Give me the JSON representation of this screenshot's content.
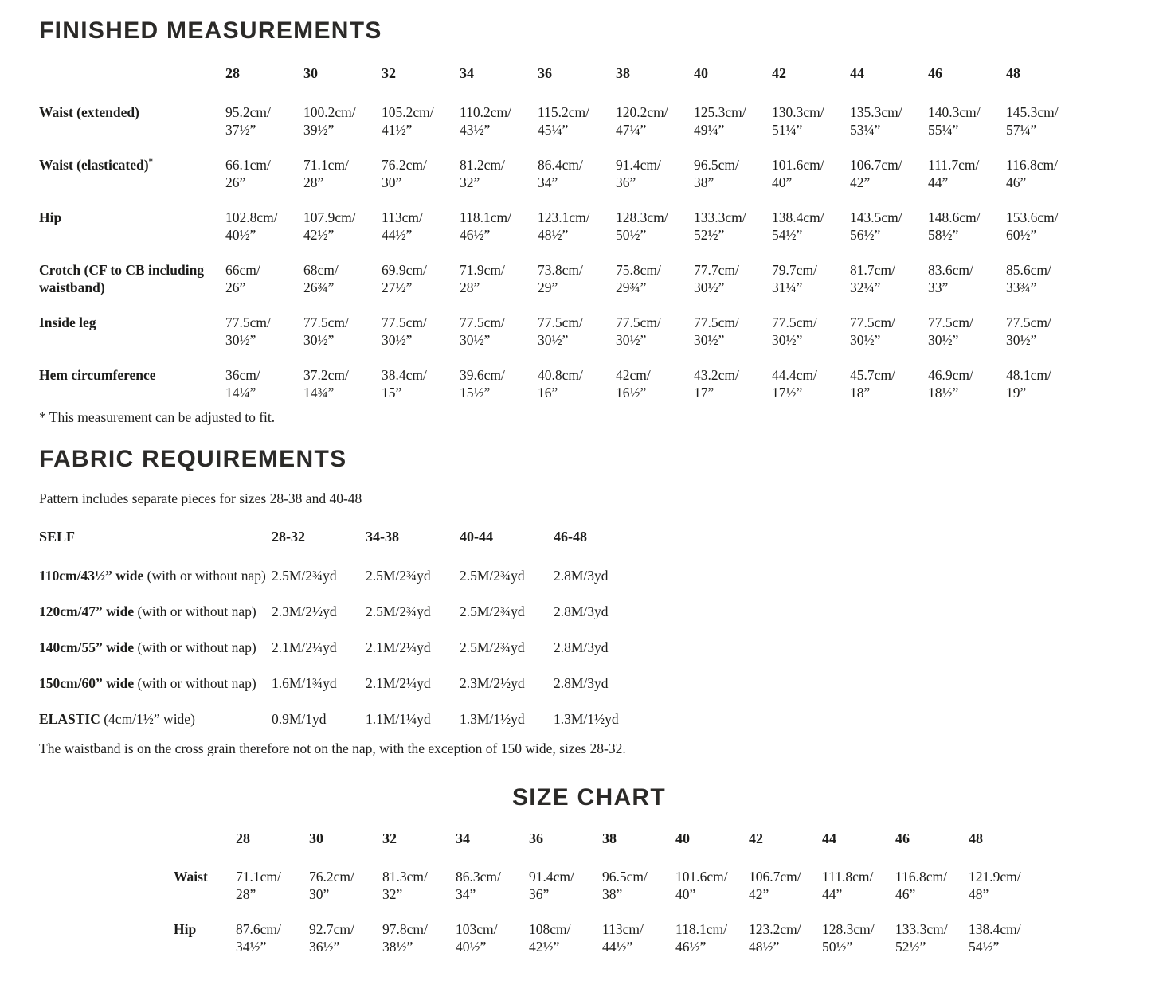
{
  "finished_measurements": {
    "title": "FINISHED MEASUREMENTS",
    "sizes": [
      "28",
      "30",
      "32",
      "34",
      "36",
      "38",
      "40",
      "42",
      "44",
      "46",
      "48"
    ],
    "rows": [
      {
        "label": "Waist (extended)",
        "cells": [
          [
            "95.2cm/",
            "37½”"
          ],
          [
            "100.2cm/",
            "39½”"
          ],
          [
            "105.2cm/",
            "41½”"
          ],
          [
            "110.2cm/",
            "43½”"
          ],
          [
            "115.2cm/",
            "45¼”"
          ],
          [
            "120.2cm/",
            "47¼”"
          ],
          [
            "125.3cm/",
            "49¼”"
          ],
          [
            "130.3cm/",
            "51¼”"
          ],
          [
            "135.3cm/",
            "53¼”"
          ],
          [
            "140.3cm/",
            "55¼”"
          ],
          [
            "145.3cm/",
            "57¼”"
          ]
        ]
      },
      {
        "label": "Waist (elasticated)",
        "sup": "*",
        "cells": [
          [
            "66.1cm/",
            "26”"
          ],
          [
            "71.1cm/",
            "28”"
          ],
          [
            "76.2cm/",
            "30”"
          ],
          [
            "81.2cm/",
            "32”"
          ],
          [
            "86.4cm/",
            "34”"
          ],
          [
            "91.4cm/",
            "36”"
          ],
          [
            "96.5cm/",
            "38”"
          ],
          [
            "101.6cm/",
            "40”"
          ],
          [
            "106.7cm/",
            "42”"
          ],
          [
            "111.7cm/",
            "44”"
          ],
          [
            "116.8cm/",
            "46”"
          ]
        ]
      },
      {
        "label": "Hip",
        "cells": [
          [
            "102.8cm/",
            "40½”"
          ],
          [
            "107.9cm/",
            "42½”"
          ],
          [
            "113cm/",
            "44½”"
          ],
          [
            "118.1cm/",
            "46½”"
          ],
          [
            "123.1cm/",
            "48½”"
          ],
          [
            "128.3cm/",
            "50½”"
          ],
          [
            "133.3cm/",
            "52½”"
          ],
          [
            "138.4cm/",
            "54½”"
          ],
          [
            "143.5cm/",
            "56½”"
          ],
          [
            "148.6cm/",
            "58½”"
          ],
          [
            "153.6cm/",
            "60½”"
          ]
        ]
      },
      {
        "label": "Crotch (CF to CB including waistband)",
        "cells": [
          [
            "66cm/",
            "26”"
          ],
          [
            "68cm/",
            "26¾”"
          ],
          [
            "69.9cm/",
            "27½”"
          ],
          [
            "71.9cm/",
            "28”"
          ],
          [
            "73.8cm/",
            "29”"
          ],
          [
            "75.8cm/",
            "29¾”"
          ],
          [
            "77.7cm/",
            "30½”"
          ],
          [
            "79.7cm/",
            "31¼”"
          ],
          [
            "81.7cm/",
            "32¼”"
          ],
          [
            "83.6cm/",
            "33”"
          ],
          [
            "85.6cm/",
            "33¾”"
          ]
        ]
      },
      {
        "label": "Inside leg",
        "cells": [
          [
            "77.5cm/",
            "30½”"
          ],
          [
            "77.5cm/",
            "30½”"
          ],
          [
            "77.5cm/",
            "30½”"
          ],
          [
            "77.5cm/",
            "30½”"
          ],
          [
            "77.5cm/",
            "30½”"
          ],
          [
            "77.5cm/",
            "30½”"
          ],
          [
            "77.5cm/",
            "30½”"
          ],
          [
            "77.5cm/",
            "30½”"
          ],
          [
            "77.5cm/",
            "30½”"
          ],
          [
            "77.5cm/",
            "30½”"
          ],
          [
            "77.5cm/",
            "30½”"
          ]
        ]
      },
      {
        "label": "Hem circumference",
        "cells": [
          [
            "36cm/",
            "14¼”"
          ],
          [
            "37.2cm/",
            "14¾”"
          ],
          [
            "38.4cm/",
            "15”"
          ],
          [
            "39.6cm/",
            "15½”"
          ],
          [
            "40.8cm/",
            "16”"
          ],
          [
            "42cm/",
            "16½”"
          ],
          [
            "43.2cm/",
            "17”"
          ],
          [
            "44.4cm/",
            "17½”"
          ],
          [
            "45.7cm/",
            "18”"
          ],
          [
            "46.9cm/",
            "18½”"
          ],
          [
            "48.1cm/",
            "19”"
          ]
        ]
      }
    ],
    "footnote": "* This measurement can be adjusted to fit."
  },
  "fabric_requirements": {
    "title": "FABRIC REQUIREMENTS",
    "intro": "Pattern includes separate pieces for sizes 28-38 and 40-48",
    "header_label": "SELF",
    "size_groups": [
      "28-32",
      "34-38",
      "40-44",
      "46-48"
    ],
    "rows": [
      {
        "label_bold": "110cm/43½” wide",
        "label_rest": "(with or without nap)",
        "cells": [
          "2.5M/2¾yd",
          "2.5M/2¾yd",
          "2.5M/2¾yd",
          "2.8M/3yd"
        ]
      },
      {
        "label_bold": "120cm/47” wide",
        "label_rest": "(with or without nap)",
        "cells": [
          "2.3M/2½yd",
          "2.5M/2¾yd",
          "2.5M/2¾yd",
          "2.8M/3yd"
        ]
      },
      {
        "label_bold": "140cm/55” wide",
        "label_rest": "(with or without nap)",
        "cells": [
          "2.1M/2¼yd",
          "2.1M/2¼yd",
          "2.5M/2¾yd",
          "2.8M/3yd"
        ]
      },
      {
        "label_bold": "150cm/60” wide",
        "label_rest": "(with or without nap)",
        "cells": [
          "1.6M/1¾yd",
          "2.1M/2¼yd",
          "2.3M/2½yd",
          "2.8M/3yd"
        ]
      },
      {
        "label_bold": "ELASTIC",
        "label_rest": "(4cm/1½” wide)",
        "cells": [
          "0.9M/1yd",
          "1.1M/1¼yd",
          "1.3M/1½yd",
          "1.3M/1½yd"
        ]
      }
    ],
    "note": "The waistband is on the cross grain therefore not on the nap, with the exception of 150 wide, sizes 28-32."
  },
  "size_chart": {
    "title": "SIZE CHART",
    "sizes": [
      "28",
      "30",
      "32",
      "34",
      "36",
      "38",
      "40",
      "42",
      "44",
      "46",
      "48"
    ],
    "rows": [
      {
        "label": "Waist",
        "cells": [
          [
            "71.1cm/",
            "28”"
          ],
          [
            "76.2cm/",
            "30”"
          ],
          [
            "81.3cm/",
            "32”"
          ],
          [
            "86.3cm/",
            "34”"
          ],
          [
            "91.4cm/",
            "36”"
          ],
          [
            "96.5cm/",
            "38”"
          ],
          [
            "101.6cm/",
            "40”"
          ],
          [
            "106.7cm/",
            "42”"
          ],
          [
            "111.8cm/",
            "44”"
          ],
          [
            "116.8cm/",
            "46”"
          ],
          [
            "121.9cm/",
            "48”"
          ]
        ]
      },
      {
        "label": "Hip",
        "cells": [
          [
            "87.6cm/",
            "34½”"
          ],
          [
            "92.7cm/",
            "36½”"
          ],
          [
            "97.8cm/",
            "38½”"
          ],
          [
            "103cm/",
            "40½”"
          ],
          [
            "108cm/",
            "42½”"
          ],
          [
            "113cm/",
            "44½”"
          ],
          [
            "118.1cm/",
            "46½”"
          ],
          [
            "123.2cm/",
            "48½”"
          ],
          [
            "128.3cm/",
            "50½”"
          ],
          [
            "133.3cm/",
            "52½”"
          ],
          [
            "138.4cm/",
            "54½”"
          ]
        ]
      }
    ]
  }
}
